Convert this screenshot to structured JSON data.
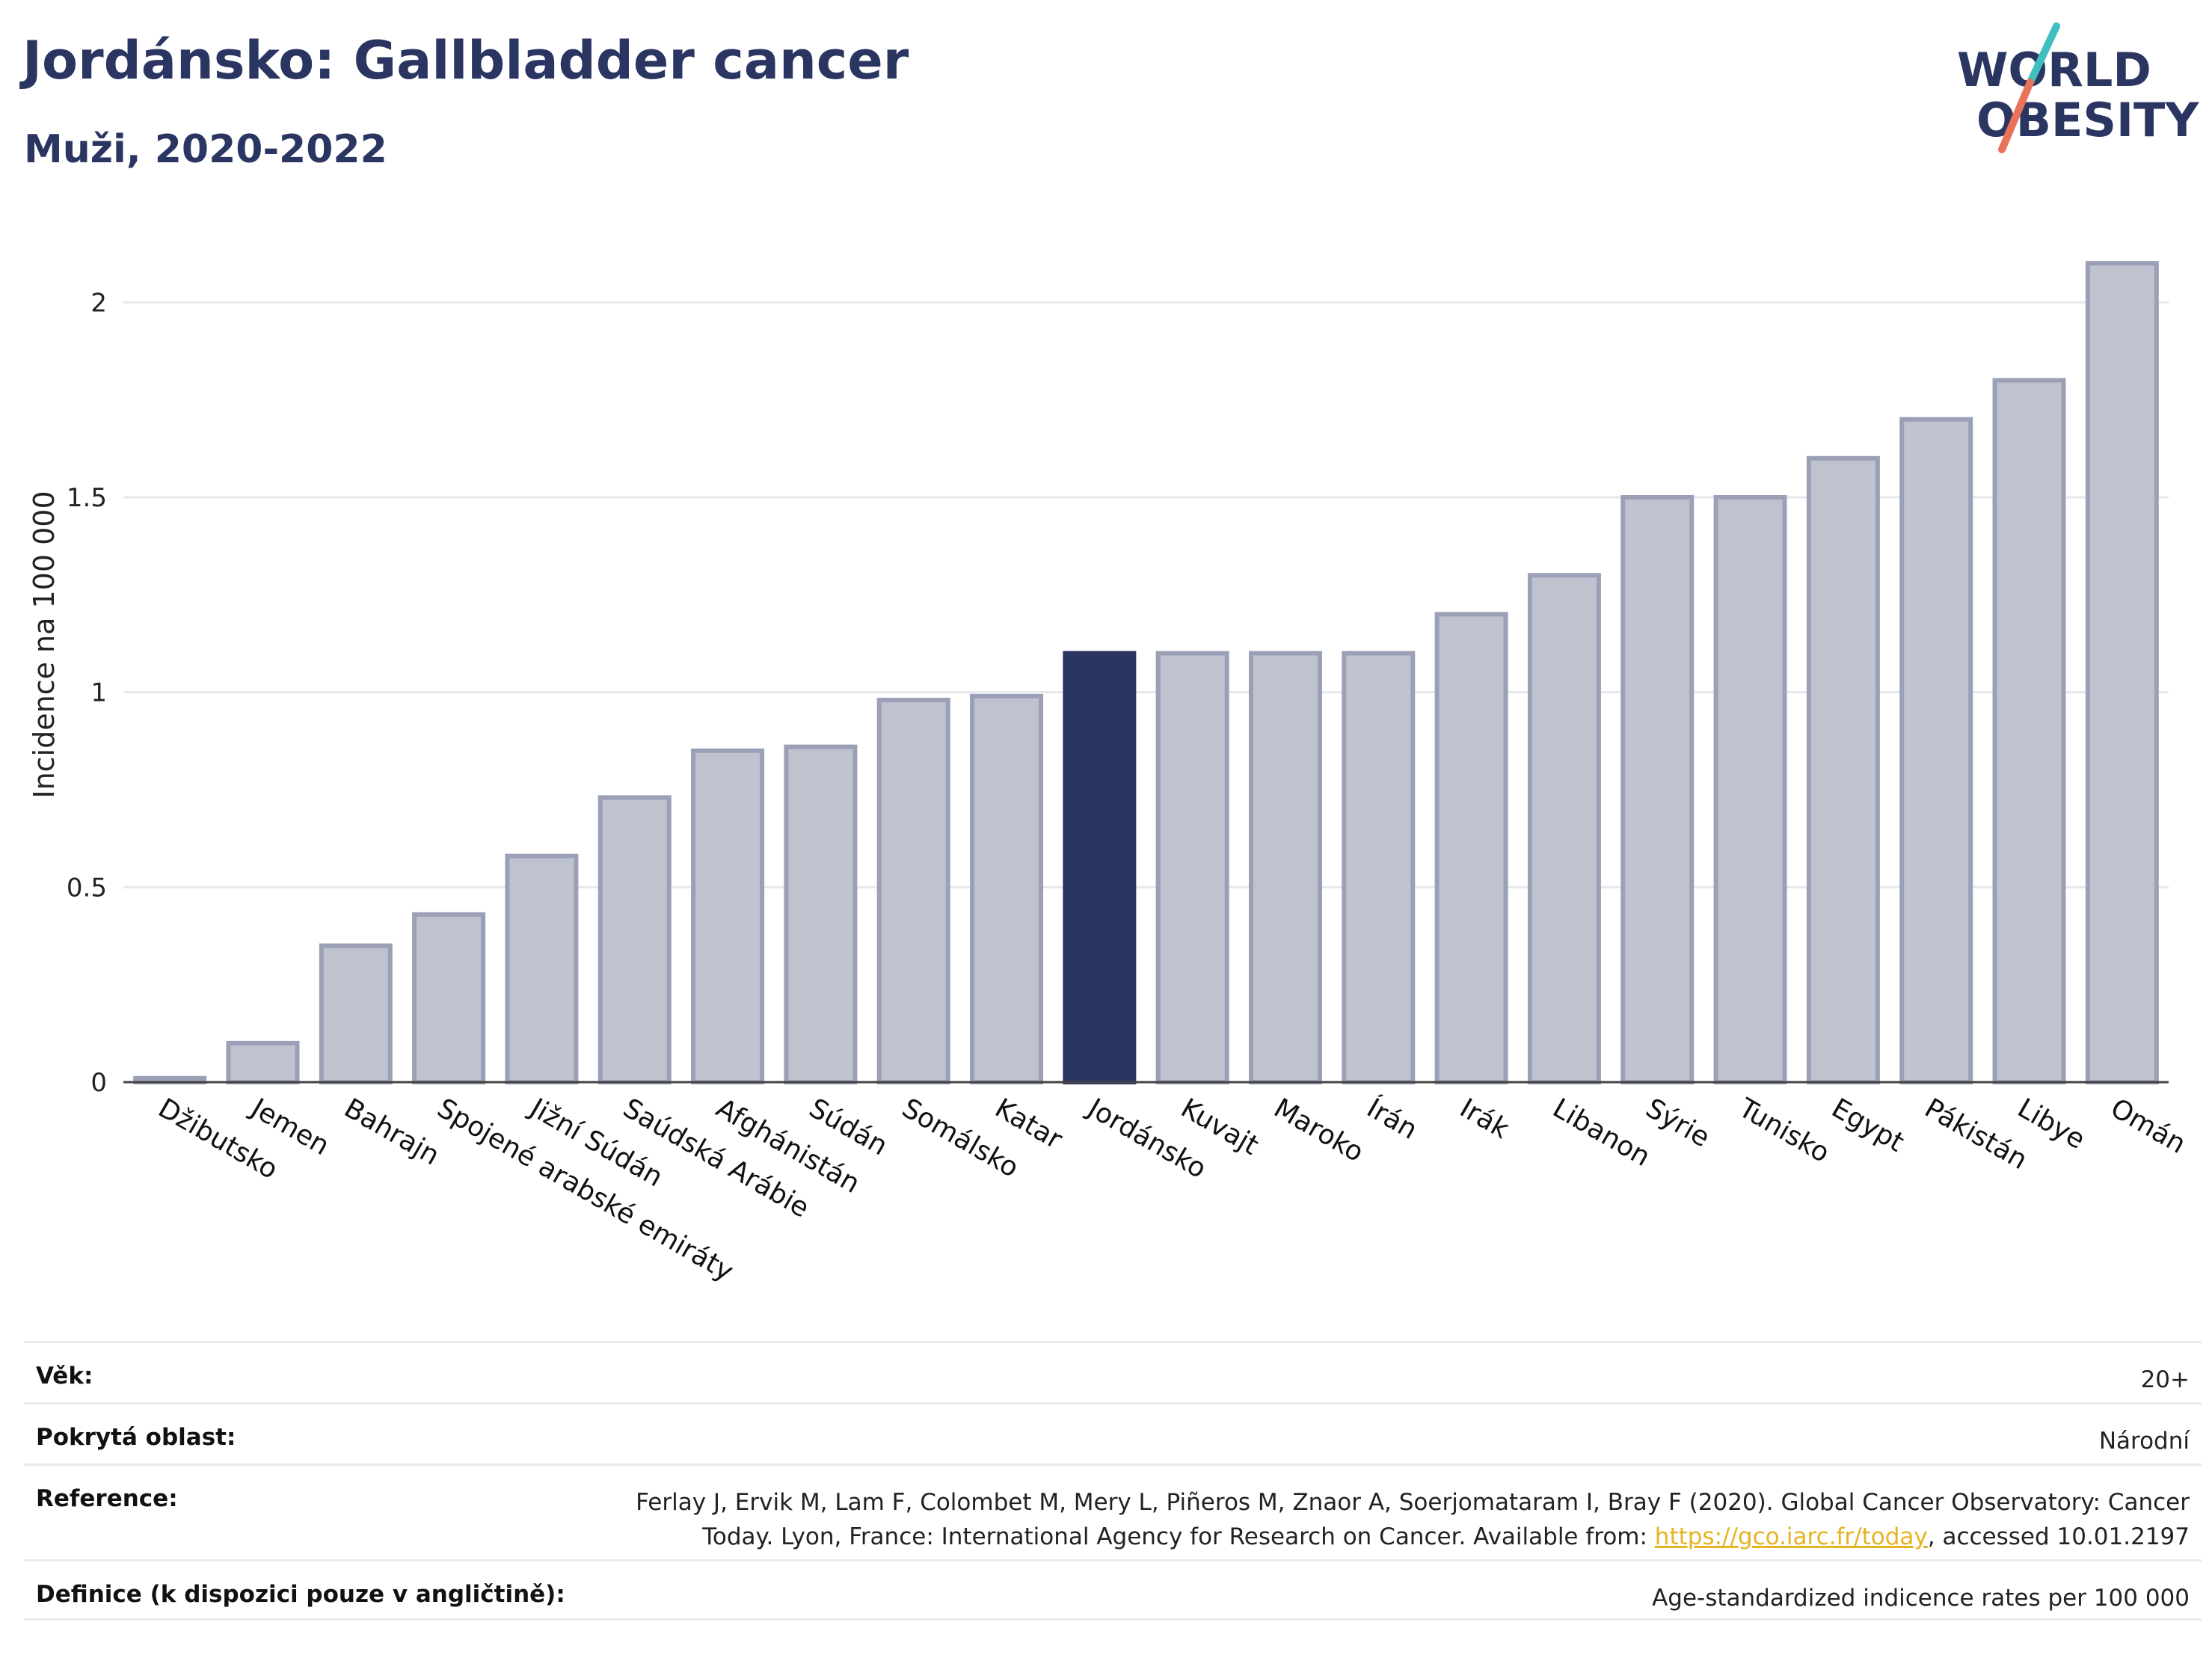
{
  "header": {
    "title": "Jordánsko: Gallbladder cancer",
    "subtitle": "Muži, 2020-2022"
  },
  "logo": {
    "line1": "WORLD",
    "line2": "OBESITY",
    "brand_color": "#2b3561",
    "slash_colors": [
      "#3fbfbf",
      "#e8735a"
    ]
  },
  "chart_data": {
    "type": "bar",
    "ylabel": "Incidence na 100 000",
    "xlabel": "",
    "ylim": [
      0,
      2.2
    ],
    "yticks": [
      0,
      0.5,
      1,
      1.5,
      2
    ],
    "ytick_labels": [
      "0",
      "0.5",
      "1",
      "1.5",
      "2"
    ],
    "grid": true,
    "highlight": "Jordánsko",
    "bar_color": "#bfc2cf",
    "bar_edge_color": "#9ba0b7",
    "highlight_color": "#2b3561",
    "categories": [
      "Džibutsko",
      "Jemen",
      "Bahrajn",
      "Spojené arabské emiráty",
      "Jižní Súdán",
      "Saúdská Arábie",
      "Afghánistán",
      "Súdán",
      "Somálsko",
      "Katar",
      "Jordánsko",
      "Kuvajt",
      "Maroko",
      "Írán",
      "Irák",
      "Libanon",
      "Sýrie",
      "Tunisko",
      "Egypt",
      "Pákistán",
      "Libye",
      "Omán"
    ],
    "values": [
      0.01,
      0.1,
      0.35,
      0.43,
      0.58,
      0.73,
      0.85,
      0.86,
      0.98,
      0.99,
      1.1,
      1.1,
      1.1,
      1.1,
      1.2,
      1.3,
      1.5,
      1.5,
      1.6,
      1.7,
      1.8,
      2.1
    ]
  },
  "info": {
    "age_label": "Věk:",
    "age_value": "20+",
    "area_label": "Pokrytá oblast:",
    "area_value": "Národní",
    "reference_label": "Reference:",
    "reference_line1": "Ferlay J, Ervik M, Lam F, Colombet M, Mery L, Piñeros M, Znaor A, Soerjomataram I, Bray F (2020). Global Cancer Observatory: Cancer",
    "reference_line2_pre": "Today. Lyon, France: International Agency for Research on Cancer. Available from: ",
    "reference_link": "https://gco.iarc.fr/today",
    "reference_line2_post": ", accessed 10.01.2197",
    "definition_label": "Definice (k dispozici pouze v angličtině):",
    "definition_value": "Age-standardized indicence rates per 100 000"
  }
}
